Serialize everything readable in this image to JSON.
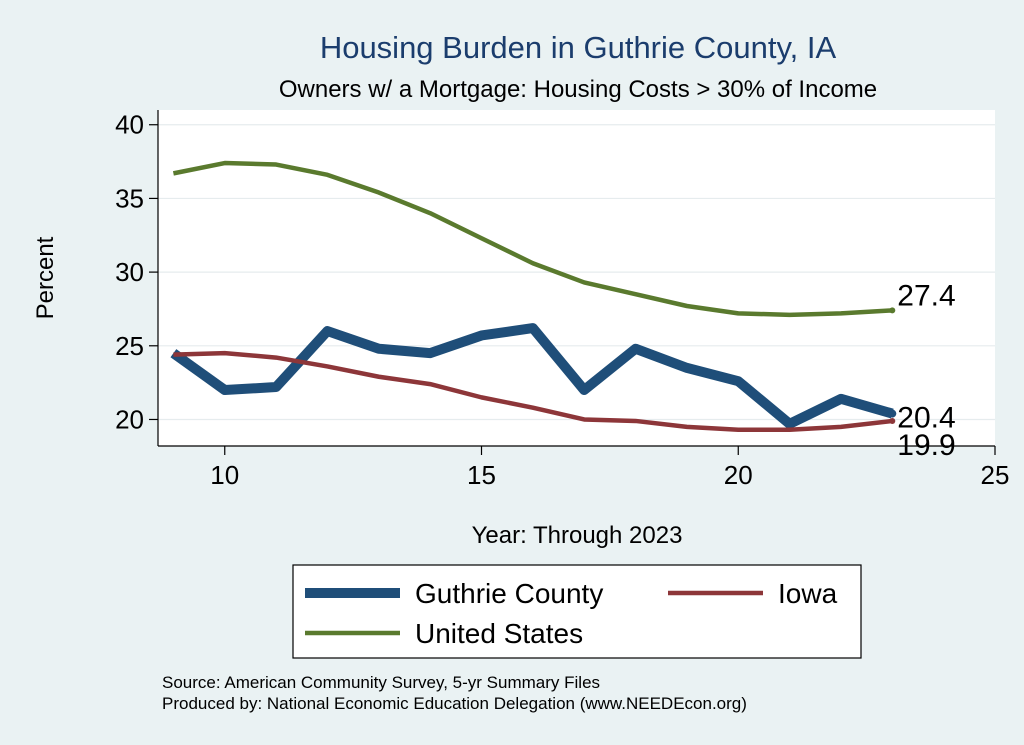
{
  "chart_data": {
    "type": "line",
    "title": "Housing Burden in Guthrie County, IA",
    "subtitle": "Owners w/ a Mortgage: Housing Costs > 30% of Income",
    "xlabel": "Year: Through 2023",
    "ylabel": "Percent",
    "xlim": [
      8.7,
      25
    ],
    "ylim": [
      18.2,
      41
    ],
    "xticks": [
      10,
      15,
      20,
      25
    ],
    "yticks": [
      20,
      25,
      30,
      35,
      40
    ],
    "grid": true,
    "legend_position": "bottom",
    "series": [
      {
        "name": "Guthrie County",
        "color": "#1f4e79",
        "x": [
          9,
          10,
          11,
          12,
          13,
          14,
          15,
          16,
          17,
          18,
          19,
          20,
          21,
          22,
          23
        ],
        "values": [
          24.5,
          22.0,
          22.2,
          26.0,
          24.8,
          24.5,
          25.7,
          26.2,
          22.0,
          24.8,
          23.5,
          22.6,
          19.7,
          21.4,
          20.4
        ],
        "end_label": "20.4"
      },
      {
        "name": "Iowa",
        "color": "#8d3639",
        "x": [
          9,
          10,
          11,
          12,
          13,
          14,
          15,
          16,
          17,
          18,
          19,
          20,
          21,
          22,
          23
        ],
        "values": [
          24.4,
          24.5,
          24.2,
          23.6,
          22.9,
          22.4,
          21.5,
          20.8,
          20.0,
          19.9,
          19.5,
          19.3,
          19.3,
          19.5,
          19.9
        ],
        "end_label": "19.9"
      },
      {
        "name": "United States",
        "color": "#5a7a2e",
        "x": [
          9,
          10,
          11,
          12,
          13,
          14,
          15,
          16,
          17,
          18,
          19,
          20,
          21,
          22,
          23
        ],
        "values": [
          36.7,
          37.4,
          37.3,
          36.6,
          35.4,
          34.0,
          32.3,
          30.6,
          29.3,
          28.5,
          27.7,
          27.2,
          27.1,
          27.2,
          27.4
        ],
        "end_label": "27.4"
      }
    ],
    "source_line1": "Source: American Community Survey, 5-yr Summary Files",
    "source_line2": "Produced by: National Economic Education Delegation (www.NEEDEcon.org)"
  }
}
